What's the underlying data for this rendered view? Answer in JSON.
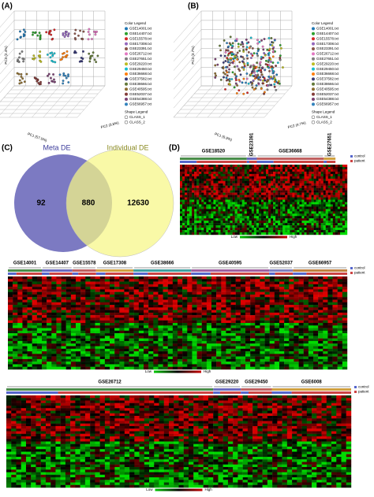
{
  "panels": {
    "a": {
      "label": "(A)",
      "legend_title": "Color Legend",
      "color_legend": [
        "GSE14001.txt",
        "GSE14407.txt",
        "GSE15578.txt",
        "GSE17308.txt",
        "GSE23391.txt",
        "GSE26712.txt",
        "GSE27651.txt",
        "GSE29220.txt",
        "GSE29450.txt",
        "GSE36668.txt",
        "GSE37582.txt",
        "GSE38666.txt",
        "GSE40595.txt",
        "GSE52037.txt",
        "GSE54388.txt",
        "GSE66957.txt"
      ],
      "shape_legend_title": "Shape Legend",
      "shape_legend": [
        "CLASS_1",
        "CLASS_2"
      ],
      "axes": [
        "PC1 (57.5%)",
        "PC2 (3.8%)",
        "PC3 (2.4%)"
      ]
    },
    "b": {
      "label": "(B)",
      "legend_title": "Color Legend",
      "color_legend": [
        "GSE14001.txt",
        "GSE14407.txt",
        "GSE15578.txt",
        "GSE17308.txt",
        "GSE23391.txt",
        "GSE26712.txt",
        "GSE27651.txt",
        "GSE29220.txt",
        "GSE29450.txt",
        "GSE36668.txt",
        "GSE37582.txt",
        "GSE38666.txt",
        "GSE40595.txt",
        "GSE52037.txt",
        "GSE54388.txt",
        "GSE66957.txt"
      ],
      "shape_legend_title": "Shape Legend",
      "shape_legend": [
        "CLASS_1",
        "CLASS_2"
      ],
      "axes": [
        "PC1 (6.9%)",
        "PC2 (4.7%)",
        "PC3 (3.7%)"
      ]
    },
    "c": {
      "label": "(C)",
      "sets": [
        "Meta DE",
        "Individual DE"
      ],
      "counts": [
        92,
        880,
        12630
      ]
    },
    "d": {
      "label": "(D)",
      "datasets": [
        "GSE18520",
        "GSE23391",
        "GSE36668",
        "GSE27651"
      ],
      "scale": [
        "Low",
        "High"
      ],
      "groups": [
        "control",
        "patient"
      ]
    }
  },
  "heatmap_2": {
    "datasets": [
      "GSE14001",
      "GSE14407",
      "GSE15578",
      "GSE17308",
      "GSE38666",
      "GSE40595",
      "GSE52037",
      "GSE66957"
    ],
    "scale": [
      "Low",
      "High"
    ],
    "groups": [
      "control",
      "patient"
    ]
  },
  "heatmap_3": {
    "datasets": [
      "GSE26712",
      "GSE29220",
      "GSE29450",
      "GSE6008"
    ],
    "scale": [
      "Low",
      "High"
    ],
    "groups": [
      "control",
      "patient"
    ]
  }
}
